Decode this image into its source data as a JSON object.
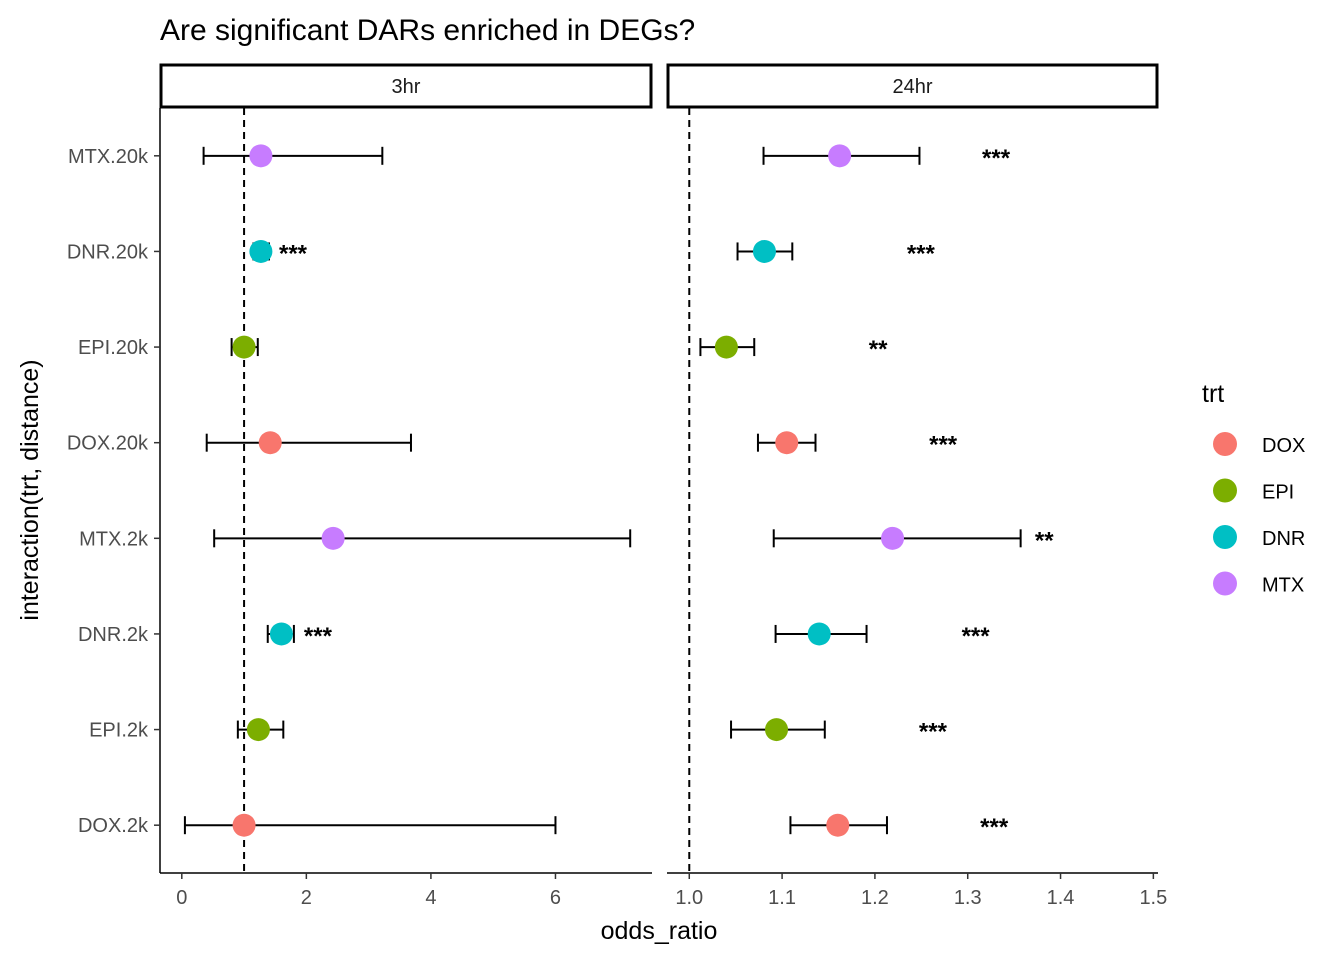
{
  "chart_data": {
    "type": "scatter",
    "title": "Are significant DARs enriched in DEGs?",
    "xlabel": "odds_ratio",
    "ylabel": "interaction(trt, distance)",
    "categories": [
      "DOX.2k",
      "EPI.2k",
      "DNR.2k",
      "MTX.2k",
      "DOX.20k",
      "EPI.20k",
      "DNR.20k",
      "MTX.20k"
    ],
    "reference_line": 1,
    "legend": {
      "title": "trt",
      "position": "right",
      "items": [
        {
          "label": "DOX",
          "color": "#F8766D"
        },
        {
          "label": "EPI",
          "color": "#7CAE00"
        },
        {
          "label": "DNR",
          "color": "#00BFC4"
        },
        {
          "label": "MTX",
          "color": "#C77CFF"
        }
      ]
    },
    "panels": [
      {
        "label": "3hr",
        "xlim": [
          -0.35,
          7.55
        ],
        "xticks": [
          0,
          2,
          4,
          6
        ],
        "tick_labels": [
          "0",
          "2",
          "4",
          "6"
        ],
        "points": [
          {
            "category": "DOX.2k",
            "trt": "DOX",
            "odds_ratio": 1.0,
            "lower": 0.05,
            "upper": 6.0,
            "sig": ""
          },
          {
            "category": "EPI.2k",
            "trt": "EPI",
            "odds_ratio": 1.23,
            "lower": 0.9,
            "upper": 1.63,
            "sig": ""
          },
          {
            "category": "DNR.2k",
            "trt": "DNR",
            "odds_ratio": 1.6,
            "lower": 1.38,
            "upper": 1.8,
            "sig": "***"
          },
          {
            "category": "MTX.2k",
            "trt": "MTX",
            "odds_ratio": 2.43,
            "lower": 0.52,
            "upper": 7.2,
            "sig": ""
          },
          {
            "category": "DOX.20k",
            "trt": "DOX",
            "odds_ratio": 1.42,
            "lower": 0.4,
            "upper": 3.68,
            "sig": ""
          },
          {
            "category": "EPI.20k",
            "trt": "EPI",
            "odds_ratio": 1.0,
            "lower": 0.8,
            "upper": 1.22,
            "sig": ""
          },
          {
            "category": "DNR.20k",
            "trt": "DNR",
            "odds_ratio": 1.27,
            "lower": 1.15,
            "upper": 1.4,
            "sig": "***"
          },
          {
            "category": "MTX.20k",
            "trt": "MTX",
            "odds_ratio": 1.27,
            "lower": 0.35,
            "upper": 3.22,
            "sig": ""
          }
        ]
      },
      {
        "label": "24hr",
        "xlim": [
          0.976,
          1.505
        ],
        "xticks": [
          1.0,
          1.1,
          1.2,
          1.3,
          1.4,
          1.5
        ],
        "tick_labels": [
          "1.0",
          "1.1",
          "1.2",
          "1.3",
          "1.4",
          "1.5"
        ],
        "points": [
          {
            "category": "DOX.2k",
            "trt": "DOX",
            "odds_ratio": 1.16,
            "lower": 1.109,
            "upper": 1.213,
            "sig": "***"
          },
          {
            "category": "EPI.2k",
            "trt": "EPI",
            "odds_ratio": 1.094,
            "lower": 1.045,
            "upper": 1.146,
            "sig": "***"
          },
          {
            "category": "DNR.2k",
            "trt": "DNR",
            "odds_ratio": 1.14,
            "lower": 1.093,
            "upper": 1.191,
            "sig": "***"
          },
          {
            "category": "MTX.2k",
            "trt": "MTX",
            "odds_ratio": 1.219,
            "lower": 1.091,
            "upper": 1.357,
            "sig": "**"
          },
          {
            "category": "DOX.20k",
            "trt": "DOX",
            "odds_ratio": 1.105,
            "lower": 1.074,
            "upper": 1.136,
            "sig": "***"
          },
          {
            "category": "EPI.20k",
            "trt": "EPI",
            "odds_ratio": 1.04,
            "lower": 1.012,
            "upper": 1.07,
            "sig": "**"
          },
          {
            "category": "DNR.20k",
            "trt": "DNR",
            "odds_ratio": 1.081,
            "lower": 1.052,
            "upper": 1.111,
            "sig": "***"
          },
          {
            "category": "MTX.20k",
            "trt": "MTX",
            "odds_ratio": 1.162,
            "lower": 1.08,
            "upper": 1.248,
            "sig": "***"
          }
        ]
      }
    ]
  }
}
